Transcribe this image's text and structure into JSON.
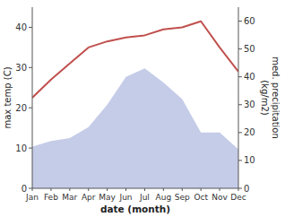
{
  "chart_data": {
    "type": "line",
    "xlabel": "date (month)",
    "ylabel": "max temp (C)",
    "y2label": "med. precipitation\n(kg/m2)",
    "categories": [
      "Jan",
      "Feb",
      "Mar",
      "Apr",
      "May",
      "Jun",
      "Jul",
      "Aug",
      "Sep",
      "Oct",
      "Nov",
      "Dec"
    ],
    "series": [
      {
        "type": "area",
        "axis": "y2",
        "color": "#c5cce8",
        "values": [
          15,
          17,
          18,
          22,
          30,
          40,
          43,
          38,
          32,
          20,
          20,
          14
        ]
      },
      {
        "type": "line",
        "color": "#c0504d",
        "values": [
          22.5,
          27.0,
          31.0,
          35.0,
          36.5,
          37.5,
          38.0,
          39.5,
          40.0,
          41.5,
          35.0,
          29.0
        ]
      }
    ],
    "ylim": [
      0,
      45
    ],
    "yticks": [
      0,
      10,
      20,
      30,
      40
    ],
    "y2lim": [
      0,
      65
    ],
    "y2ticks": [
      0,
      10,
      20,
      30,
      40,
      50,
      60
    ]
  }
}
